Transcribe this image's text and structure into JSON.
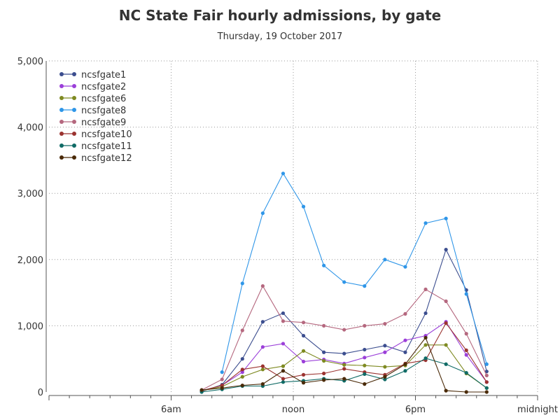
{
  "chart_data": {
    "type": "line",
    "title": "NC State Fair hourly admissions, by gate",
    "subtitle": "Thursday, 19 October 2017",
    "xlabel": "",
    "ylabel": "",
    "x_unit": "hour of day",
    "xlim": [
      0,
      24
    ],
    "ylim": [
      0,
      5000
    ],
    "y_ticks": [
      {
        "value": 0,
        "label": "0"
      },
      {
        "value": 1000,
        "label": "1,000"
      },
      {
        "value": 2000,
        "label": "2,000"
      },
      {
        "value": 3000,
        "label": "3,000"
      },
      {
        "value": 4000,
        "label": "4,000"
      },
      {
        "value": 5000,
        "label": "5,000"
      }
    ],
    "x_ticks": [
      {
        "value": 6,
        "label": "6am"
      },
      {
        "value": 12,
        "label": "noon"
      },
      {
        "value": 18,
        "label": "6pm"
      },
      {
        "value": 24,
        "label": "midnight"
      }
    ],
    "grid": true,
    "legend_position": "top-left",
    "x": [
      7.5,
      8.5,
      9.5,
      10.5,
      11.5,
      12.5,
      13.5,
      14.5,
      15.5,
      16.5,
      17.5,
      18.5,
      19.5,
      20.5,
      21.5
    ],
    "series": [
      {
        "name": "ncsfgate1",
        "color": "#3c4e8f",
        "values": [
          10,
          110,
          500,
          1060,
          1190,
          850,
          600,
          580,
          640,
          700,
          600,
          1190,
          2150,
          1540,
          310
        ]
      },
      {
        "name": "ncsfgate2",
        "color": "#9b3fd9",
        "values": [
          20,
          100,
          300,
          680,
          730,
          460,
          490,
          430,
          520,
          600,
          780,
          850,
          1060,
          560,
          150
        ]
      },
      {
        "name": "ncsfgate6",
        "color": "#7e8a21",
        "values": [
          20,
          80,
          230,
          340,
          390,
          620,
          470,
          410,
          400,
          380,
          400,
          710,
          710,
          280,
          60
        ]
      },
      {
        "name": "ncsfgate8",
        "color": "#2f96e8",
        "values": [
          null,
          300,
          1640,
          2700,
          3300,
          2800,
          1910,
          1660,
          1600,
          2000,
          1890,
          2550,
          2620,
          1480,
          420
        ]
      },
      {
        "name": "ncsfgate9",
        "color": "#b5687f",
        "values": [
          30,
          190,
          930,
          1600,
          1070,
          1050,
          1000,
          940,
          1000,
          1030,
          1180,
          1550,
          1370,
          880,
          250
        ]
      },
      {
        "name": "ncsfgate10",
        "color": "#9b3330",
        "values": [
          20,
          100,
          340,
          390,
          200,
          260,
          280,
          350,
          300,
          260,
          430,
          480,
          1040,
          630,
          150
        ]
      },
      {
        "name": "ncsfgate11",
        "color": "#106b66",
        "values": [
          0,
          40,
          90,
          90,
          150,
          170,
          200,
          170,
          270,
          190,
          320,
          510,
          420,
          290,
          60
        ]
      },
      {
        "name": "ncsfgate12",
        "color": "#4a2a08",
        "values": [
          30,
          60,
          100,
          120,
          320,
          140,
          180,
          200,
          120,
          230,
          420,
          820,
          20,
          0,
          0
        ]
      }
    ]
  }
}
